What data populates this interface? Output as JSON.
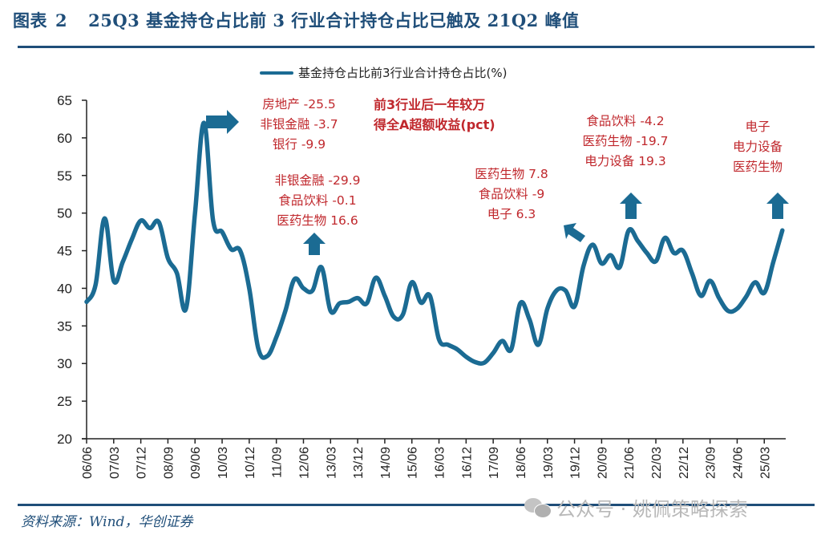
{
  "header": {
    "figure_label": "图表",
    "figure_number": "2",
    "title": "25Q3 基金持仓占比前 3 行业合计持仓占比已触及 21Q2 峰值"
  },
  "footer": {
    "source": "资料来源：Wind，华创证券",
    "watermark": "公众号 · 姚佩策略探索",
    "watermark_icon": "wechat-icon"
  },
  "colors": {
    "line": "#1b6b93",
    "annotation": "#c0282d",
    "title": "#1f4e79",
    "arrow": "#1b6b93"
  },
  "annotations": {
    "peak_0906": [
      "房地产  -25.5",
      "非银金融  -3.7",
      "银行  -9.9"
    ],
    "note": [
      "前3行业后一年较万",
      "得全A超额收益(pct)"
    ],
    "peak_1206": [
      "非银金融  -29.9",
      "食品饮料  -0.1",
      "医药生物  16.6"
    ],
    "peak_2003": [
      "医药生物  7.8",
      "食品饮料  -9",
      "电子  6.3"
    ],
    "peak_2106": [
      "食品饮料  -4.2",
      "医药生物  -19.7",
      "电力设备  19.3"
    ],
    "peak_2509": [
      "电子",
      "电力设备",
      "医药生物"
    ]
  },
  "chart_data": {
    "type": "line",
    "title": "25Q3 基金持仓占比前 3 行业合计持仓占比已触及 21Q2 峰值",
    "xlabel": "",
    "ylabel": "",
    "ylim": [
      20,
      65
    ],
    "yticks": [
      20,
      25,
      30,
      35,
      40,
      45,
      50,
      55,
      60,
      65
    ],
    "xtick_labels": [
      "06/06",
      "07/03",
      "07/12",
      "08/09",
      "09/06",
      "10/03",
      "10/12",
      "11/09",
      "12/06",
      "13/03",
      "13/12",
      "14/09",
      "15/06",
      "16/03",
      "16/12",
      "17/09",
      "18/06",
      "19/03",
      "19/12",
      "20/09",
      "21/06",
      "22/03",
      "22/12",
      "23/09",
      "24/06",
      "25/03"
    ],
    "x_start": "06Q2",
    "x_end": "25Q3",
    "frequency": "quarterly",
    "legend": "top-center",
    "grid": false,
    "series": [
      {
        "name": "基金持仓占比前3行业合计持仓占比(%)",
        "values": [
          38.2,
          40.5,
          49.3,
          41.0,
          43.5,
          46.5,
          49.0,
          48.0,
          48.8,
          44.0,
          42.0,
          37.3,
          50.0,
          62.0,
          49.0,
          47.5,
          45.2,
          45.0,
          40.0,
          32.0,
          31.0,
          33.5,
          37.0,
          41.2,
          40.0,
          39.7,
          42.8,
          37.0,
          38.0,
          38.2,
          38.7,
          38.0,
          41.4,
          39.0,
          36.2,
          36.5,
          40.8,
          38.1,
          39.0,
          33.2,
          32.5,
          31.9,
          30.9,
          30.2,
          30.1,
          31.4,
          33.0,
          31.9,
          38.0,
          35.9,
          32.5,
          37.3,
          39.7,
          39.7,
          37.6,
          43.0,
          45.8,
          43.3,
          44.4,
          42.8,
          47.7,
          46.3,
          44.7,
          43.6,
          46.7,
          44.7,
          45.0,
          42.0,
          39.0,
          41.0,
          38.7,
          37.0,
          37.3,
          38.9,
          40.8,
          39.4,
          43.5,
          47.7
        ]
      }
    ]
  }
}
